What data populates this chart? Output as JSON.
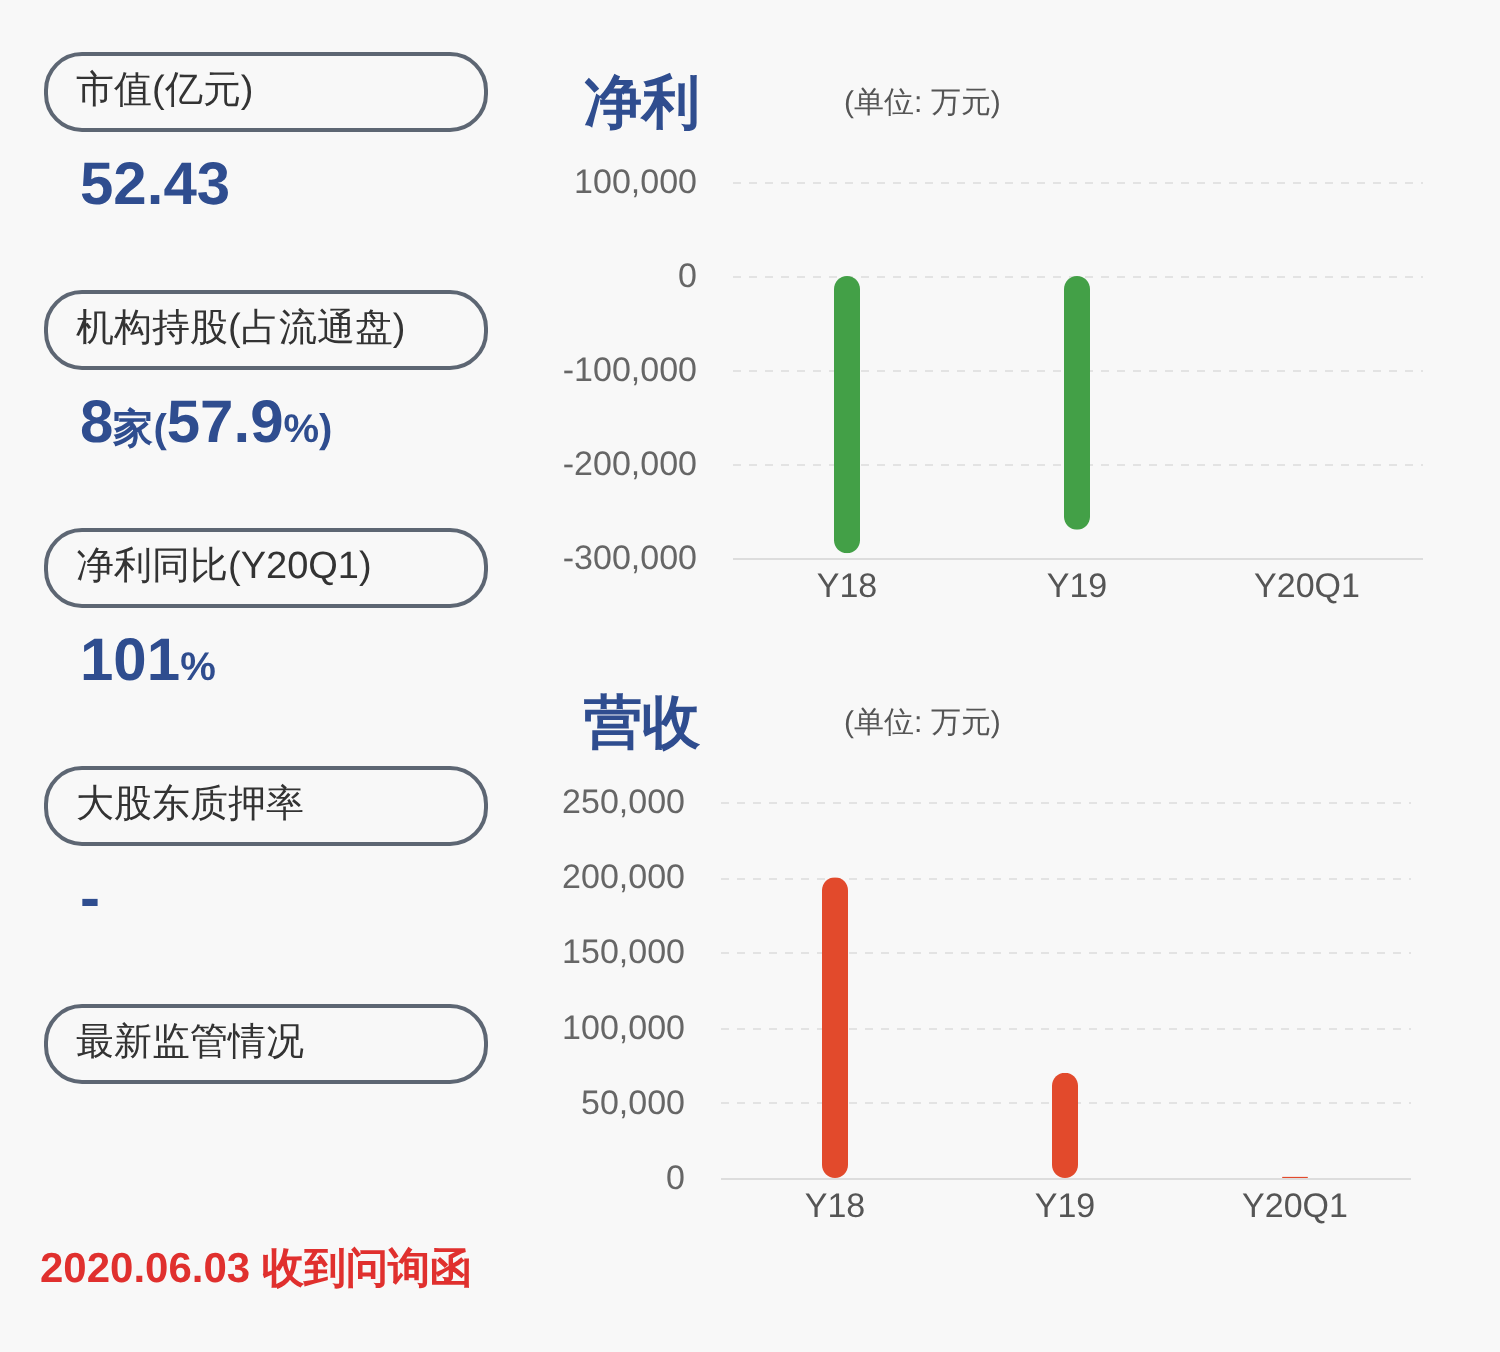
{
  "chart_data": [
    {
      "type": "other",
      "annotations": [
        "市值(亿元)",
        "52.43",
        "机构持股(占流通盘)",
        "8家(57.9%)",
        "净利同比(Y20Q1)",
        "101%",
        "大股东质押率",
        "-",
        "最新监管情况",
        "2020.06.03 收到问询函"
      ]
    },
    {
      "type": "bar",
      "title": "净利",
      "subtitle": "(单位: 万元)",
      "categories": [
        "Y18",
        "Y19",
        "Y20Q1"
      ],
      "values": [
        -295000,
        -270000,
        null
      ],
      "color": "#43a047",
      "ylim": [
        -300000,
        100000
      ],
      "yticks": [
        {
          "value": -300000,
          "label": "-300,000"
        },
        {
          "value": -200000,
          "label": "-200,000"
        },
        {
          "value": -100000,
          "label": "-100,000"
        },
        0,
        {
          "value": 100000,
          "label": "100,000"
        }
      ],
      "grid": "y"
    },
    {
      "type": "bar",
      "title": "营收",
      "subtitle": "(单位: 万元)",
      "categories": [
        "Y18",
        "Y19",
        "Y20Q1"
      ],
      "values": [
        200000,
        70000,
        1000
      ],
      "color": "#e24a2c",
      "ylim": [
        0,
        250000
      ],
      "yticks": [
        0,
        {
          "value": 50000,
          "label": "50,000"
        },
        {
          "value": 100000,
          "label": "100,000"
        },
        {
          "value": 150000,
          "label": "150,000"
        },
        {
          "value": 200000,
          "label": "200,000"
        },
        {
          "value": 250000,
          "label": "250,000"
        }
      ],
      "grid": "y"
    }
  ]
}
